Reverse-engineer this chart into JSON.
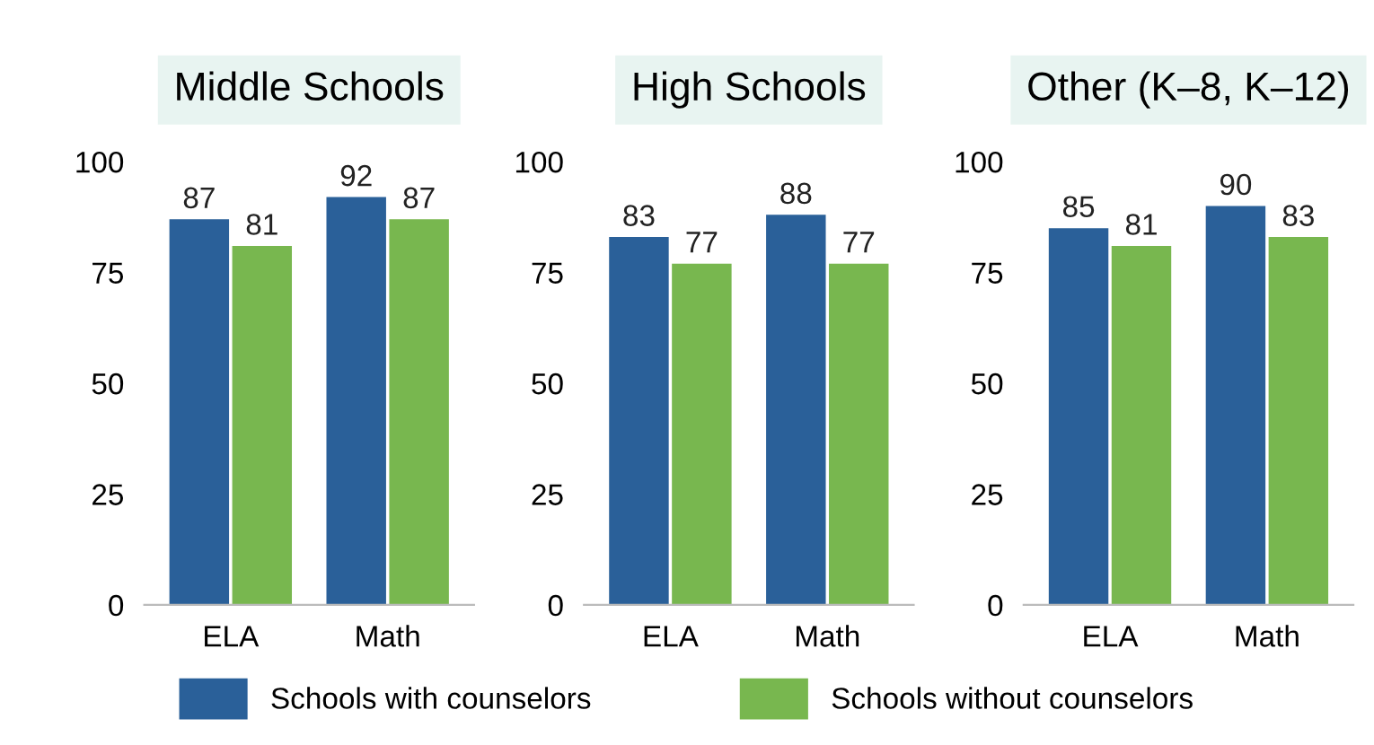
{
  "chart_data": [
    {
      "type": "bar",
      "title": "Middle Schools",
      "categories": [
        "ELA",
        "Math"
      ],
      "series": [
        {
          "name": "Schools with counselors",
          "color": "#2a6099",
          "values": [
            87,
            92
          ]
        },
        {
          "name": "Schools without counselors",
          "color": "#78b74f",
          "values": [
            81,
            87
          ]
        }
      ],
      "ylim": [
        0,
        100
      ],
      "yticks": [
        0,
        25,
        50,
        75,
        100
      ],
      "data_labels": true,
      "grid": false,
      "legend": "bottom"
    },
    {
      "type": "bar",
      "title": "High Schools",
      "categories": [
        "ELA",
        "Math"
      ],
      "series": [
        {
          "color": "#2a6099",
          "values": [
            83,
            88
          ]
        },
        {
          "color": "#78b74f",
          "values": [
            77,
            77
          ]
        }
      ],
      "ylim": [
        0,
        100
      ],
      "yticks": [
        0,
        25,
        50,
        75,
        100
      ],
      "data_labels": true,
      "grid": false
    },
    {
      "type": "bar",
      "title": "Other (K–8, K–12)",
      "categories": [
        "ELA",
        "Math"
      ],
      "series": [
        {
          "color": "#2a6099",
          "values": [
            85,
            90
          ]
        },
        {
          "color": "#78b74f",
          "values": [
            81,
            83
          ]
        }
      ],
      "ylim": [
        0,
        100
      ],
      "yticks": [
        0,
        25,
        50,
        75,
        100
      ],
      "data_labels": true,
      "grid": false
    }
  ]
}
